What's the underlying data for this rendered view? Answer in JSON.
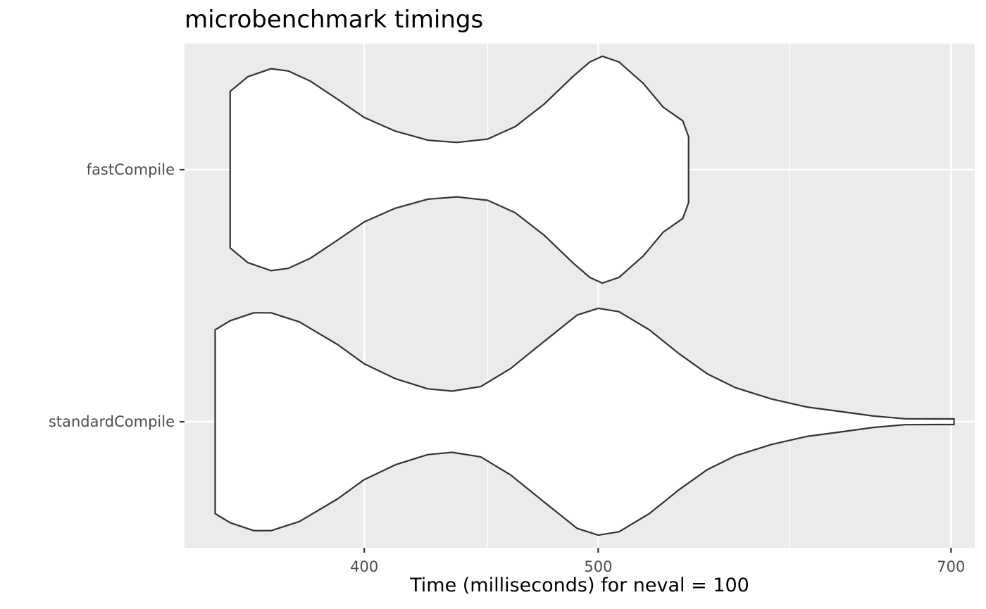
{
  "chart_data": {
    "type": "violin",
    "title": "microbenchmark timings",
    "xlabel": "Time (milliseconds) for neval = 100",
    "ylabel": "",
    "x_scale": "log",
    "x_ticks": [
      {
        "value": 400,
        "label": "400"
      },
      {
        "value": 500,
        "label": "500"
      },
      {
        "value": 700,
        "label": "700"
      }
    ],
    "x_minor_gridlines": [
      450,
      600
    ],
    "xlim": [
      337,
      716
    ],
    "grid": true,
    "categories": [
      "fastCompile",
      "standardCompile"
    ],
    "series": [
      {
        "name": "fastCompile",
        "profile": [
          [
            352,
            0.69
          ],
          [
            358,
            0.82
          ],
          [
            366,
            0.89
          ],
          [
            372,
            0.87
          ],
          [
            380,
            0.78
          ],
          [
            390,
            0.62
          ],
          [
            400,
            0.46
          ],
          [
            412,
            0.34
          ],
          [
            425,
            0.26
          ],
          [
            437,
            0.24
          ],
          [
            450,
            0.27
          ],
          [
            462,
            0.38
          ],
          [
            475,
            0.58
          ],
          [
            488,
            0.82
          ],
          [
            496,
            0.95
          ],
          [
            502,
            1.0
          ],
          [
            510,
            0.95
          ],
          [
            522,
            0.76
          ],
          [
            532,
            0.55
          ],
          [
            542,
            0.43
          ],
          [
            545,
            0.29
          ]
        ]
      },
      {
        "name": "standardCompile",
        "profile": [
          [
            347,
            0.81
          ],
          [
            352,
            0.89
          ],
          [
            360,
            0.96
          ],
          [
            366,
            0.96
          ],
          [
            376,
            0.88
          ],
          [
            390,
            0.68
          ],
          [
            400,
            0.51
          ],
          [
            412,
            0.38
          ],
          [
            425,
            0.29
          ],
          [
            435,
            0.27
          ],
          [
            447,
            0.31
          ],
          [
            460,
            0.47
          ],
          [
            475,
            0.71
          ],
          [
            490,
            0.94
          ],
          [
            500,
            1.0
          ],
          [
            510,
            0.97
          ],
          [
            525,
            0.81
          ],
          [
            540,
            0.6
          ],
          [
            555,
            0.42
          ],
          [
            570,
            0.3
          ],
          [
            590,
            0.2
          ],
          [
            610,
            0.13
          ],
          [
            630,
            0.09
          ],
          [
            650,
            0.05
          ],
          [
            670,
            0.026
          ],
          [
            690,
            0.025
          ],
          [
            702,
            0.025
          ]
        ]
      }
    ]
  }
}
